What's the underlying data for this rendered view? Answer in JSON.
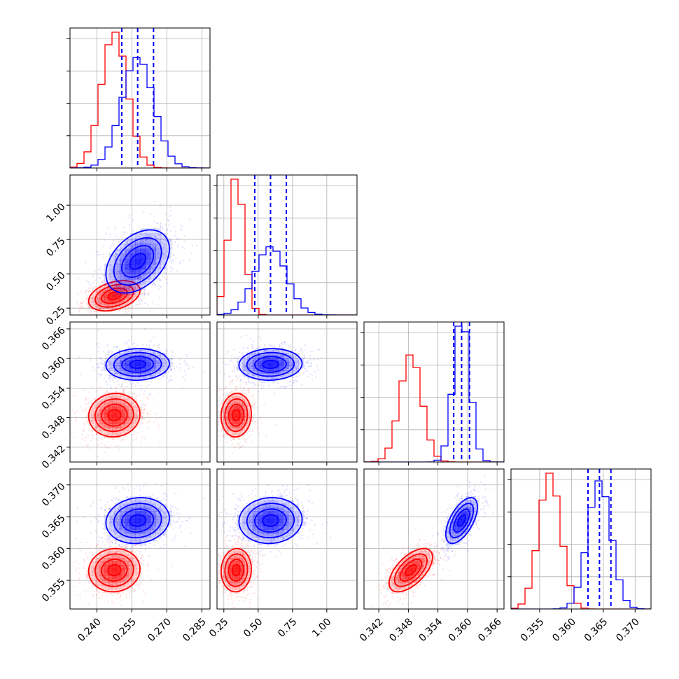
{
  "chart_data": {
    "type": "corner",
    "title": "",
    "grid": true,
    "series": [
      {
        "color": "#ff0000",
        "means": [
          0.2475,
          0.34,
          0.3485,
          0.3566
        ],
        "sds": [
          0.0055,
          0.055,
          0.0022,
          0.0017
        ],
        "correlations": [
          [
            0,
            1,
            0.35
          ],
          [
            0,
            2,
            0.05
          ],
          [
            0,
            3,
            0.05
          ],
          [
            1,
            2,
            0.05
          ],
          [
            1,
            3,
            0.05
          ],
          [
            2,
            3,
            0.6
          ]
        ]
      },
      {
        "color": "#0000ff",
        "means": [
          0.2575,
          0.59,
          0.3588,
          0.3644
        ],
        "sds": [
          0.0068,
          0.115,
          0.0016,
          0.0018
        ],
        "correlations": [
          [
            0,
            1,
            0.4
          ],
          [
            0,
            2,
            0.05
          ],
          [
            0,
            3,
            0.1
          ],
          [
            1,
            2,
            0.05
          ],
          [
            1,
            3,
            0.05
          ],
          [
            2,
            3,
            0.6
          ]
        ]
      }
    ],
    "quantile_lines": {
      "color": "#0000ff",
      "style": "dashed",
      "values": [
        [
          0.2507,
          0.2575,
          0.2643
        ],
        [
          0.475,
          0.59,
          0.705
        ],
        [
          0.3572,
          0.3588,
          0.3604
        ],
        [
          0.3626,
          0.3644,
          0.3662
        ]
      ]
    },
    "parameters": [
      {
        "range": [
          0.2285,
          0.2885
        ],
        "ticks": [
          0.24,
          0.255,
          0.27,
          0.285
        ],
        "tick_labels": [
          "0.240",
          "0.255",
          "0.270",
          "0.285"
        ]
      },
      {
        "range": [
          0.2,
          1.22
        ],
        "ticks": [
          0.25,
          0.5,
          0.75,
          1.0
        ],
        "tick_labels": [
          "0.25",
          "0.50",
          "0.75",
          "1.00"
        ]
      },
      {
        "range": [
          0.339,
          0.3674
        ],
        "ticks": [
          0.342,
          0.348,
          0.354,
          0.36,
          0.366
        ],
        "tick_labels": [
          "0.342",
          "0.348",
          "0.354",
          "0.360",
          "0.366"
        ]
      },
      {
        "range": [
          0.3505,
          0.3725
        ],
        "ticks": [
          0.355,
          0.36,
          0.365,
          0.37
        ],
        "tick_labels": [
          "0.355",
          "0.360",
          "0.365",
          "0.370"
        ]
      }
    ]
  }
}
